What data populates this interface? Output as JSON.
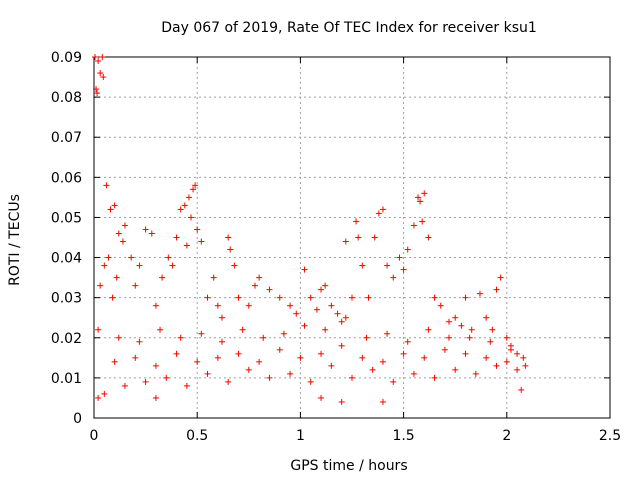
{
  "chart_data": {
    "type": "scatter",
    "title": "Day 067 of 2019, Rate Of TEC Index for receiver ksu1",
    "xlabel": "GPS time / hours",
    "ylabel": "ROTI / TECUs",
    "xlim": [
      0,
      2.5
    ],
    "ylim": [
      0,
      0.09
    ],
    "x_ticks": [
      0,
      0.5,
      1,
      1.5,
      2,
      2.5
    ],
    "x_tick_labels": [
      "0",
      "0.5",
      "1",
      "1.5",
      "2",
      "2.5"
    ],
    "y_ticks": [
      0,
      0.01,
      0.02,
      0.03,
      0.04,
      0.05,
      0.06,
      0.07,
      0.08,
      0.09
    ],
    "y_tick_labels": [
      "0",
      "0.01",
      "0.02",
      "0.03",
      "0.04",
      "0.05",
      "0.06",
      "0.07",
      "0.08",
      "0.09"
    ],
    "grid": true,
    "marker": "+",
    "marker_color": "#ff0000",
    "series": [
      {
        "name": "ROTI",
        "points": [
          [
            0.005,
            0.09
          ],
          [
            0.02,
            0.089
          ],
          [
            0.04,
            0.09
          ],
          [
            0.03,
            0.086
          ],
          [
            0.045,
            0.085
          ],
          [
            0.01,
            0.082
          ],
          [
            0.015,
            0.081
          ],
          [
            0.06,
            0.058
          ],
          [
            0.08,
            0.052
          ],
          [
            0.1,
            0.053
          ],
          [
            0.12,
            0.046
          ],
          [
            0.15,
            0.048
          ],
          [
            0.05,
            0.038
          ],
          [
            0.03,
            0.033
          ],
          [
            0.02,
            0.022
          ],
          [
            0.07,
            0.04
          ],
          [
            0.09,
            0.03
          ],
          [
            0.11,
            0.035
          ],
          [
            0.14,
            0.044
          ],
          [
            0.18,
            0.04
          ],
          [
            0.2,
            0.033
          ],
          [
            0.22,
            0.038
          ],
          [
            0.25,
            0.047
          ],
          [
            0.28,
            0.046
          ],
          [
            0.3,
            0.028
          ],
          [
            0.33,
            0.035
          ],
          [
            0.36,
            0.04
          ],
          [
            0.38,
            0.038
          ],
          [
            0.4,
            0.045
          ],
          [
            0.42,
            0.052
          ],
          [
            0.44,
            0.053
          ],
          [
            0.46,
            0.055
          ],
          [
            0.48,
            0.057
          ],
          [
            0.49,
            0.058
          ],
          [
            0.47,
            0.05
          ],
          [
            0.45,
            0.043
          ],
          [
            0.5,
            0.047
          ],
          [
            0.52,
            0.044
          ],
          [
            0.55,
            0.03
          ],
          [
            0.58,
            0.035
          ],
          [
            0.6,
            0.028
          ],
          [
            0.62,
            0.025
          ],
          [
            0.65,
            0.045
          ],
          [
            0.66,
            0.042
          ],
          [
            0.68,
            0.038
          ],
          [
            0.7,
            0.03
          ],
          [
            0.75,
            0.028
          ],
          [
            0.78,
            0.033
          ],
          [
            0.8,
            0.035
          ],
          [
            0.85,
            0.032
          ],
          [
            0.9,
            0.03
          ],
          [
            0.95,
            0.028
          ],
          [
            0.98,
            0.026
          ],
          [
            1.02,
            0.037
          ],
          [
            1.05,
            0.03
          ],
          [
            1.08,
            0.027
          ],
          [
            1.1,
            0.032
          ],
          [
            1.12,
            0.033
          ],
          [
            1.15,
            0.028
          ],
          [
            1.18,
            0.026
          ],
          [
            1.2,
            0.024
          ],
          [
            1.22,
            0.044
          ],
          [
            1.25,
            0.03
          ],
          [
            1.27,
            0.049
          ],
          [
            1.28,
            0.045
          ],
          [
            1.3,
            0.038
          ],
          [
            1.33,
            0.03
          ],
          [
            1.36,
            0.045
          ],
          [
            1.38,
            0.051
          ],
          [
            1.4,
            0.052
          ],
          [
            1.42,
            0.038
          ],
          [
            1.45,
            0.035
          ],
          [
            1.48,
            0.04
          ],
          [
            1.5,
            0.037
          ],
          [
            1.52,
            0.042
          ],
          [
            1.55,
            0.048
          ],
          [
            1.57,
            0.055
          ],
          [
            1.58,
            0.054
          ],
          [
            1.6,
            0.056
          ],
          [
            1.59,
            0.049
          ],
          [
            1.62,
            0.045
          ],
          [
            1.65,
            0.03
          ],
          [
            1.68,
            0.028
          ],
          [
            1.72,
            0.02
          ],
          [
            1.75,
            0.025
          ],
          [
            1.78,
            0.023
          ],
          [
            1.8,
            0.03
          ],
          [
            1.83,
            0.022
          ],
          [
            1.87,
            0.031
          ],
          [
            1.9,
            0.025
          ],
          [
            1.93,
            0.022
          ],
          [
            1.95,
            0.032
          ],
          [
            1.97,
            0.035
          ],
          [
            2.0,
            0.02
          ],
          [
            2.02,
            0.017
          ],
          [
            2.05,
            0.016
          ],
          [
            2.08,
            0.015
          ],
          [
            2.09,
            0.013
          ],
          [
            2.07,
            0.007
          ],
          [
            1.2,
            0.004
          ],
          [
            1.4,
            0.004
          ],
          [
            1.1,
            0.005
          ],
          [
            0.3,
            0.005
          ],
          [
            0.02,
            0.005
          ],
          [
            0.05,
            0.006
          ],
          [
            0.15,
            0.008
          ],
          [
            0.25,
            0.009
          ],
          [
            0.35,
            0.01
          ],
          [
            0.45,
            0.008
          ],
          [
            0.55,
            0.011
          ],
          [
            0.65,
            0.009
          ],
          [
            0.75,
            0.012
          ],
          [
            0.85,
            0.01
          ],
          [
            0.95,
            0.011
          ],
          [
            1.05,
            0.009
          ],
          [
            1.15,
            0.013
          ],
          [
            1.25,
            0.01
          ],
          [
            1.35,
            0.012
          ],
          [
            1.45,
            0.009
          ],
          [
            1.55,
            0.011
          ],
          [
            1.65,
            0.01
          ],
          [
            1.75,
            0.012
          ],
          [
            1.85,
            0.011
          ],
          [
            1.95,
            0.013
          ],
          [
            2.05,
            0.012
          ],
          [
            0.1,
            0.014
          ],
          [
            0.2,
            0.015
          ],
          [
            0.3,
            0.013
          ],
          [
            0.4,
            0.016
          ],
          [
            0.5,
            0.014
          ],
          [
            0.6,
            0.015
          ],
          [
            0.7,
            0.016
          ],
          [
            0.8,
            0.014
          ],
          [
            0.9,
            0.017
          ],
          [
            1.0,
            0.015
          ],
          [
            1.1,
            0.016
          ],
          [
            1.2,
            0.018
          ],
          [
            1.3,
            0.015
          ],
          [
            1.4,
            0.014
          ],
          [
            1.5,
            0.016
          ],
          [
            1.6,
            0.015
          ],
          [
            1.7,
            0.017
          ],
          [
            1.8,
            0.016
          ],
          [
            1.9,
            0.015
          ],
          [
            2.0,
            0.014
          ],
          [
            0.12,
            0.02
          ],
          [
            0.22,
            0.019
          ],
          [
            0.32,
            0.022
          ],
          [
            0.42,
            0.02
          ],
          [
            0.52,
            0.021
          ],
          [
            0.62,
            0.019
          ],
          [
            0.72,
            0.022
          ],
          [
            0.82,
            0.02
          ],
          [
            0.92,
            0.021
          ],
          [
            1.02,
            0.023
          ],
          [
            1.12,
            0.022
          ],
          [
            1.22,
            0.025
          ],
          [
            1.32,
            0.02
          ],
          [
            1.42,
            0.021
          ],
          [
            1.52,
            0.019
          ],
          [
            1.62,
            0.022
          ],
          [
            1.72,
            0.024
          ],
          [
            1.82,
            0.02
          ],
          [
            1.92,
            0.019
          ],
          [
            2.02,
            0.018
          ]
        ]
      }
    ]
  }
}
